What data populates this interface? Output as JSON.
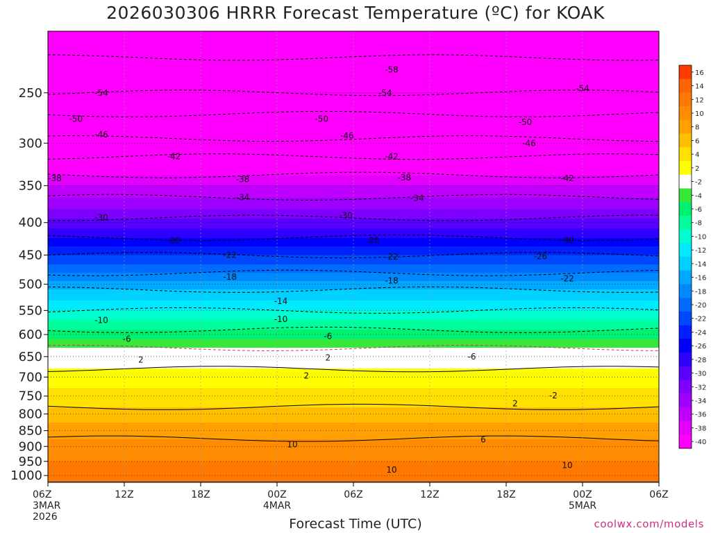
{
  "title": "2026030306 HRRR Forecast Temperature (ºC) for KOAK",
  "xlabel": "Forecast Time (UTC)",
  "credit": "coolwx.com/models",
  "chart_data": {
    "type": "heatmap",
    "title": "2026030306 HRRR Forecast Temperature (ºC) for KOAK",
    "xlabel": "Forecast Time (UTC)",
    "ylabel": "",
    "y_scale": "log",
    "y_axis_reversed": true,
    "y_ticks": [
      250,
      300,
      350,
      400,
      450,
      500,
      550,
      600,
      650,
      700,
      750,
      800,
      850,
      900,
      950,
      1000
    ],
    "x_ticks": [
      {
        "hour": 0,
        "label": "06Z",
        "sub": "3MAR",
        "sub2": "2026"
      },
      {
        "hour": 6,
        "label": "12Z",
        "sub": "",
        "sub2": ""
      },
      {
        "hour": 12,
        "label": "18Z",
        "sub": "",
        "sub2": ""
      },
      {
        "hour": 18,
        "label": "00Z",
        "sub": "4MAR",
        "sub2": ""
      },
      {
        "hour": 24,
        "label": "06Z",
        "sub": "",
        "sub2": ""
      },
      {
        "hour": 30,
        "label": "12Z",
        "sub": "",
        "sub2": ""
      },
      {
        "hour": 36,
        "label": "18Z",
        "sub": "",
        "sub2": ""
      },
      {
        "hour": 42,
        "label": "00Z",
        "sub": "5MAR",
        "sub2": ""
      },
      {
        "hour": 48,
        "label": "06Z",
        "sub": "",
        "sub2": ""
      }
    ],
    "xlim_hours": [
      0,
      48
    ],
    "ylim_hpa": [
      1025,
      200
    ],
    "colorbar": {
      "labels": [
        "16",
        "14",
        "12",
        "10",
        "8",
        "6",
        "4",
        "2",
        "-2",
        "-4",
        "-6",
        "-8",
        "-10",
        "-12",
        "-14",
        "-16",
        "-18",
        "-20",
        "-22",
        "-24",
        "-26",
        "-28",
        "-30",
        "-32",
        "-34",
        "-36",
        "-38",
        "-40"
      ],
      "colors": [
        "#ff3c00",
        "#ff6400",
        "#ff7800",
        "#ff8c00",
        "#ffa000",
        "#ffbe00",
        "#ffe000",
        "#ffff00",
        "#ffffff",
        "#38e838",
        "#00f070",
        "#00ff9c",
        "#00ffd0",
        "#00eaff",
        "#00d0ff",
        "#00a8ff",
        "#0088ff",
        "#006cff",
        "#0048ff",
        "#0020ff",
        "#0000ff",
        "#3000ff",
        "#5a00ff",
        "#8000ff",
        "#a000ff",
        "#c000ff",
        "#e400ff",
        "#ff00ff"
      ]
    },
    "temperature_profile": [
      {
        "p": 200,
        "t": -60
      },
      {
        "p": 230,
        "t": -57
      },
      {
        "p": 250,
        "t": -54
      },
      {
        "p": 270,
        "t": -50
      },
      {
        "p": 290,
        "t": -47
      },
      {
        "p": 310,
        "t": -43
      },
      {
        "p": 330,
        "t": -39
      },
      {
        "p": 350,
        "t": -36
      },
      {
        "p": 380,
        "t": -32
      },
      {
        "p": 400,
        "t": -29
      },
      {
        "p": 430,
        "t": -25
      },
      {
        "p": 450,
        "t": -22
      },
      {
        "p": 480,
        "t": -18
      },
      {
        "p": 500,
        "t": -15
      },
      {
        "p": 530,
        "t": -12
      },
      {
        "p": 550,
        "t": -10
      },
      {
        "p": 580,
        "t": -7
      },
      {
        "p": 600,
        "t": -5
      },
      {
        "p": 630,
        "t": -2
      },
      {
        "p": 650,
        "t": 0
      },
      {
        "p": 680,
        "t": 2
      },
      {
        "p": 700,
        "t": 3
      },
      {
        "p": 730,
        "t": 4
      },
      {
        "p": 760,
        "t": 5
      },
      {
        "p": 800,
        "t": 7
      },
      {
        "p": 850,
        "t": 9
      },
      {
        "p": 900,
        "t": 11
      },
      {
        "p": 950,
        "t": 12
      },
      {
        "p": 1000,
        "t": 13
      },
      {
        "p": 1025,
        "t": 14
      }
    ],
    "contour_labels": [
      {
        "v": "-54",
        "h": 4.2,
        "p": 250
      },
      {
        "v": "-54",
        "h": 26.5,
        "p": 250
      },
      {
        "v": "-54",
        "h": 42,
        "p": 246
      },
      {
        "v": "-58",
        "h": 27,
        "p": 230
      },
      {
        "v": "-50",
        "h": 2.2,
        "p": 275
      },
      {
        "v": "-50",
        "h": 21.5,
        "p": 275
      },
      {
        "v": "-50",
        "h": 37.5,
        "p": 278
      },
      {
        "v": "-46",
        "h": 4.2,
        "p": 291
      },
      {
        "v": "-46",
        "h": 23.5,
        "p": 292
      },
      {
        "v": "-46",
        "h": 37.8,
        "p": 300
      },
      {
        "v": "-42",
        "h": 9.9,
        "p": 315
      },
      {
        "v": "-42",
        "h": 27,
        "p": 315
      },
      {
        "v": "-42",
        "h": 40.8,
        "p": 341
      },
      {
        "v": "-38",
        "h": -1.5,
        "p": 341
      },
      {
        "v": "-38",
        "h": 15.3,
        "p": 342
      },
      {
        "v": "-38",
        "h": 28,
        "p": 340
      },
      {
        "v": "-34",
        "h": 15.3,
        "p": 365
      },
      {
        "v": "-34",
        "h": 29,
        "p": 366
      },
      {
        "v": "-30",
        "h": 4.2,
        "p": 393
      },
      {
        "v": "-30",
        "h": 23.4,
        "p": 390
      },
      {
        "v": "-30",
        "h": 40.8,
        "p": 427
      },
      {
        "v": "-26",
        "h": 9.9,
        "p": 427
      },
      {
        "v": "-26",
        "h": 25.5,
        "p": 427
      },
      {
        "v": "-26",
        "h": 38.7,
        "p": 452
      },
      {
        "v": "-22",
        "h": 14.3,
        "p": 450
      },
      {
        "v": "-22",
        "h": 27,
        "p": 453
      },
      {
        "v": "-22",
        "h": 40.8,
        "p": 490
      },
      {
        "v": "-18",
        "h": 14.3,
        "p": 487
      },
      {
        "v": "-18",
        "h": 27,
        "p": 494
      },
      {
        "v": "-14",
        "h": 18.3,
        "p": 532
      },
      {
        "v": "-10",
        "h": 4.2,
        "p": 570
      },
      {
        "v": "-10",
        "h": 18.3,
        "p": 568
      },
      {
        "v": "-6",
        "h": 6.2,
        "p": 610
      },
      {
        "v": "-6",
        "h": 22,
        "p": 604
      },
      {
        "v": "-6",
        "h": 33.3,
        "p": 650
      },
      {
        "v": "2",
        "h": 7.3,
        "p": 658
      },
      {
        "v": "2",
        "h": 22,
        "p": 653
      },
      {
        "v": "2",
        "h": 20.3,
        "p": 697
      },
      {
        "v": "-2",
        "h": 39.7,
        "p": 749
      },
      {
        "v": "2",
        "h": 36.7,
        "p": 771
      },
      {
        "v": "6",
        "h": 34.2,
        "p": 878
      },
      {
        "v": "10",
        "h": 19.2,
        "p": 894
      },
      {
        "v": "10",
        "h": 27,
        "p": 980
      },
      {
        "v": "10",
        "h": 40.8,
        "p": 964
      }
    ]
  }
}
